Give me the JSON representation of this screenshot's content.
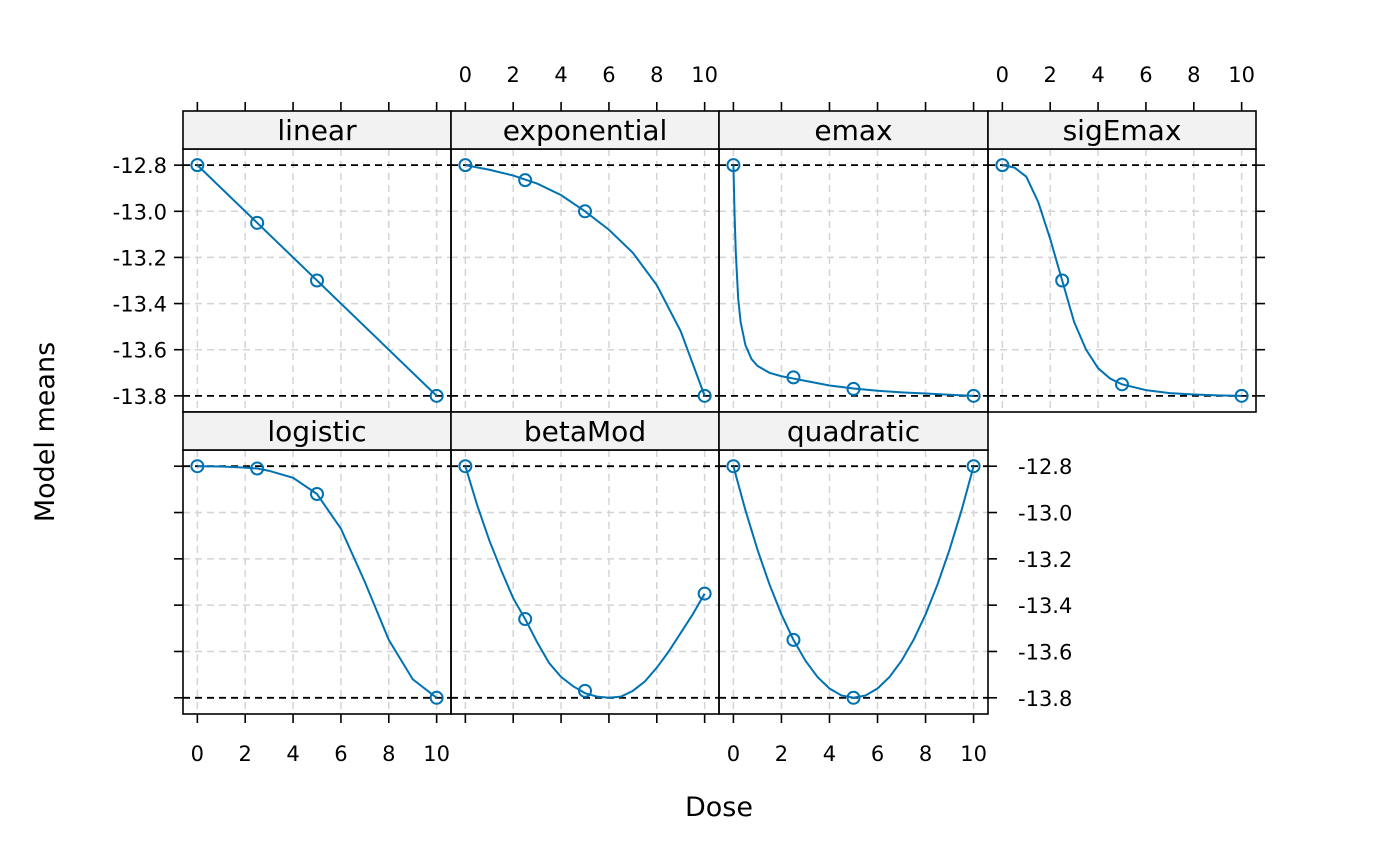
{
  "chart_data": {
    "type": "line",
    "xlabel": "Dose",
    "ylabel": "Model means",
    "xlim": [
      -0.6,
      10.6
    ],
    "ylim": [
      -13.87,
      -12.73
    ],
    "x_ticks": [
      0,
      2,
      4,
      6,
      8,
      10
    ],
    "x_tick_labels": [
      "0",
      "2",
      "4",
      "6",
      "8",
      "10"
    ],
    "y_ticks": [
      -12.8,
      -13.0,
      -13.2,
      -13.4,
      -13.6,
      -13.8
    ],
    "y_tick_labels": [
      "-12.8",
      "-13.0",
      "-13.2",
      "-13.4",
      "-13.6",
      "-13.8"
    ],
    "reference_lines": [
      -12.8,
      -13.8
    ],
    "grid": true,
    "line_color": "#0072B2",
    "panels": [
      {
        "name": "linear",
        "points": {
          "x": [
            0,
            2.5,
            5,
            10
          ],
          "y": [
            -12.8,
            -13.05,
            -13.3,
            -13.8
          ]
        },
        "curve": {
          "x": [
            0,
            10
          ],
          "y": [
            -12.8,
            -13.8
          ]
        }
      },
      {
        "name": "exponential",
        "points": {
          "x": [
            0,
            2.5,
            5,
            10
          ],
          "y": [
            -12.8,
            -12.865,
            -13.0,
            -13.8
          ]
        },
        "curve": {
          "x": [
            0,
            1,
            2,
            3,
            4,
            5,
            6,
            7,
            8,
            9,
            10
          ],
          "y": [
            -12.8,
            -12.82,
            -12.845,
            -12.88,
            -12.93,
            -13.0,
            -13.08,
            -13.18,
            -13.32,
            -13.52,
            -13.8
          ]
        }
      },
      {
        "name": "emax",
        "points": {
          "x": [
            0,
            2.5,
            5,
            10
          ],
          "y": [
            -12.8,
            -13.72,
            -13.77,
            -13.8
          ]
        },
        "curve": {
          "x": [
            0,
            0.05,
            0.1,
            0.2,
            0.3,
            0.5,
            0.75,
            1,
            1.5,
            2,
            2.5,
            3,
            4,
            5,
            6,
            7,
            8,
            9,
            10
          ],
          "y": [
            -12.8,
            -13.02,
            -13.18,
            -13.38,
            -13.48,
            -13.58,
            -13.64,
            -13.67,
            -13.7,
            -13.715,
            -13.725,
            -13.735,
            -13.755,
            -13.768,
            -13.778,
            -13.785,
            -13.79,
            -13.795,
            -13.8
          ]
        }
      },
      {
        "name": "sigEmax",
        "points": {
          "x": [
            0,
            2.5,
            5,
            10
          ],
          "y": [
            -12.8,
            -13.3,
            -13.75,
            -13.8
          ]
        },
        "curve": {
          "x": [
            0,
            0.5,
            1,
            1.5,
            2,
            2.5,
            3,
            3.5,
            4,
            4.5,
            5,
            6,
            7,
            8,
            9,
            10
          ],
          "y": [
            -12.8,
            -12.81,
            -12.85,
            -12.96,
            -13.12,
            -13.3,
            -13.48,
            -13.6,
            -13.68,
            -13.725,
            -13.75,
            -13.775,
            -13.788,
            -13.794,
            -13.798,
            -13.8
          ]
        }
      },
      {
        "name": "logistic",
        "points": {
          "x": [
            0,
            2.5,
            5,
            10
          ],
          "y": [
            -12.8,
            -12.81,
            -12.92,
            -13.8
          ]
        },
        "curve": {
          "x": [
            0,
            1,
            2,
            2.5,
            3,
            4,
            5,
            6,
            7,
            8,
            9,
            10
          ],
          "y": [
            -12.8,
            -12.801,
            -12.806,
            -12.81,
            -12.82,
            -12.85,
            -12.92,
            -13.07,
            -13.3,
            -13.55,
            -13.72,
            -13.8
          ]
        }
      },
      {
        "name": "betaMod",
        "points": {
          "x": [
            0,
            2.5,
            5,
            10
          ],
          "y": [
            -12.8,
            -13.46,
            -13.77,
            -13.35
          ]
        },
        "curve": {
          "x": [
            0,
            0.5,
            1,
            1.5,
            2,
            2.5,
            3,
            3.5,
            4,
            4.5,
            5,
            5.5,
            6,
            6.5,
            7,
            7.5,
            8,
            8.5,
            9,
            9.5,
            10
          ],
          "y": [
            -12.8,
            -12.97,
            -13.12,
            -13.25,
            -13.37,
            -13.46,
            -13.56,
            -13.65,
            -13.71,
            -13.75,
            -13.78,
            -13.795,
            -13.8,
            -13.795,
            -13.77,
            -13.73,
            -13.67,
            -13.6,
            -13.52,
            -13.44,
            -13.35
          ]
        }
      },
      {
        "name": "quadratic",
        "points": {
          "x": [
            0,
            2.5,
            5,
            10
          ],
          "y": [
            -12.8,
            -13.55,
            -13.8,
            -12.8
          ]
        },
        "curve": {
          "x": [
            0,
            0.5,
            1,
            1.5,
            2,
            2.5,
            3,
            3.5,
            4,
            4.5,
            5,
            5.5,
            6,
            6.5,
            7,
            7.5,
            8,
            8.5,
            9,
            9.5,
            10
          ],
          "y": [
            -12.8,
            -12.99,
            -13.16,
            -13.31,
            -13.44,
            -13.55,
            -13.64,
            -13.71,
            -13.76,
            -13.79,
            -13.8,
            -13.79,
            -13.76,
            -13.71,
            -13.64,
            -13.55,
            -13.44,
            -13.31,
            -13.16,
            -12.99,
            -12.8
          ]
        }
      }
    ]
  }
}
